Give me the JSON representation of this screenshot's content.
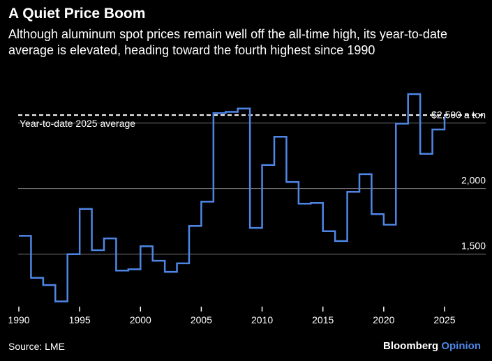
{
  "header": {
    "title": "A Quiet Price Boom",
    "subtitle": "Although aluminum spot prices remain well off the all-time high, its year-to-date average is elevated, heading toward the fourth highest since 1990"
  },
  "footer": {
    "source": "Source: LME",
    "brand_main": "Bloomberg",
    "brand_sub": "Opinion"
  },
  "colors": {
    "background": "#000000",
    "line": "#4f86e6",
    "grid": "#7a7a7a",
    "text": "#ffffff"
  },
  "chart_data": {
    "type": "line",
    "step": true,
    "x": [
      1990,
      1991,
      1992,
      1993,
      1994,
      1995,
      1996,
      1997,
      1998,
      1999,
      2000,
      2001,
      2002,
      2003,
      2004,
      2005,
      2006,
      2007,
      2008,
      2009,
      2010,
      2011,
      2012,
      2013,
      2014,
      2015,
      2016,
      2017,
      2018,
      2019,
      2020,
      2021,
      2022,
      2023,
      2024,
      2025
    ],
    "series": [
      {
        "values": [
          1640,
          1320,
          1265,
          1140,
          1500,
          1845,
          1530,
          1620,
          1375,
          1385,
          1560,
          1450,
          1365,
          1430,
          1715,
          1900,
          2575,
          2585,
          2610,
          1700,
          2180,
          2395,
          2050,
          1885,
          1890,
          1675,
          1600,
          1975,
          2110,
          1805,
          1725,
          2495,
          2720,
          2265,
          2450,
          2555
        ]
      }
    ],
    "reference_line": {
      "value": 2560,
      "label": "Year-to-date 2025 average"
    },
    "y_ticks": [
      {
        "value": 1500,
        "label": "1,500"
      },
      {
        "value": 2000,
        "label": "2,000"
      },
      {
        "value": 2500,
        "label": "$2,500 a ton"
      }
    ],
    "x_ticks": [
      {
        "value": 1990,
        "label": "1990"
      },
      {
        "value": 1995,
        "label": "1995"
      },
      {
        "value": 2000,
        "label": "2000"
      },
      {
        "value": 2005,
        "label": "2005"
      },
      {
        "value": 2010,
        "label": "2010"
      },
      {
        "value": 2015,
        "label": "2015"
      },
      {
        "value": 2020,
        "label": "2020"
      },
      {
        "value": 2025,
        "label": "2025"
      }
    ],
    "ylim": [
      1100,
      2800
    ],
    "xlim": [
      1990,
      2025
    ],
    "grid": "horizontal"
  }
}
